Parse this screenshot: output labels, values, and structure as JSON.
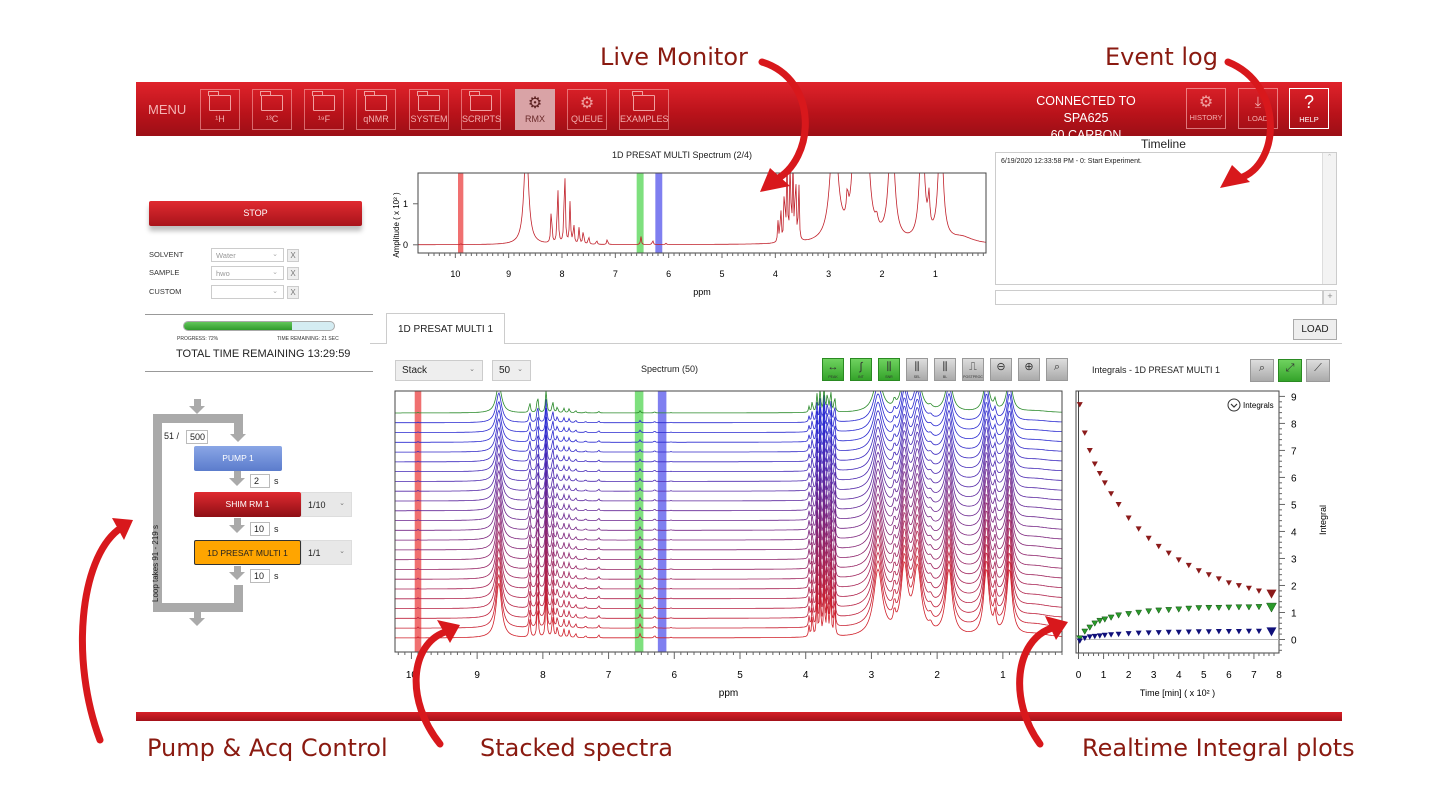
{
  "annotations": {
    "live_monitor": "Live Monitor",
    "event_log": "Event log",
    "pump_acq": "Pump & Acq Control",
    "stacked": "Stacked spectra",
    "realtime": "Realtime Integral plots",
    "arrow_color": "#d8181c"
  },
  "header": {
    "menu": "MENU",
    "buttons": [
      {
        "label": "¹H",
        "icon": "folder-icon"
      },
      {
        "label": "¹³C",
        "icon": "folder-icon"
      },
      {
        "label": "¹⁹F",
        "icon": "folder-icon"
      },
      {
        "label": "qNMR",
        "icon": "folder-icon"
      },
      {
        "label": "SYSTEM",
        "icon": "folder-icon"
      },
      {
        "label": "SCRIPTS",
        "icon": "folder-icon"
      },
      {
        "label": "RMX",
        "icon": "gears-icon",
        "selected": true
      },
      {
        "label": "QUEUE",
        "icon": "gears-icon"
      },
      {
        "label": "EXAMPLES",
        "icon": "folder-icon"
      }
    ],
    "connection_line1": "CONNECTED TO SPA625",
    "connection_line2": "60 CARBON",
    "history": "HISTORY",
    "load": "LOAD",
    "help": "HELP",
    "help_glyph": "?",
    "brand_color": "#c8161e"
  },
  "left": {
    "stop": "STOP",
    "fields": [
      {
        "label": "SOLVENT",
        "value": "Water",
        "clear": "X"
      },
      {
        "label": "SAMPLE",
        "value": "hwo",
        "clear": "X"
      },
      {
        "label": "CUSTOM",
        "value": "",
        "clear": "X"
      }
    ],
    "progress_pct": 72,
    "progress_text": "PROGRESS: 72%",
    "time_remaining": "TIME REMAINING: 21 SEC",
    "total_remaining": "TOTAL TIME REMAINING 13:29:59"
  },
  "flow": {
    "loop_count": "51 /",
    "loop_total": "500",
    "loop_note": "Loop takes 91 - 219 s",
    "steps": [
      {
        "label": "PUMP 1",
        "color": "#6f8fd6"
      },
      {
        "label": "SHIM RM 1",
        "color": "#b8141c",
        "option": "1/10"
      },
      {
        "label": "1D PRESAT MULTI 1",
        "color": "#ffa500",
        "option": "1/1"
      }
    ],
    "delays": [
      "2",
      "10",
      "10"
    ],
    "unit": "s"
  },
  "live_monitor": {
    "title": "1D PRESAT MULTI Spectrum (2/4)",
    "ylabel": "Amplitude ( x 10² )",
    "xlabel": "ppm",
    "xticks": [
      10,
      9,
      8,
      7,
      6,
      5,
      4,
      3,
      2,
      1
    ],
    "yticks": [
      0,
      1
    ],
    "xlim": [
      10.7,
      0.05
    ],
    "ylim": [
      -0.2,
      1.75
    ],
    "regions": [
      {
        "ppm": [
          9.95,
          9.85
        ],
        "color": "#f07070"
      },
      {
        "ppm": [
          6.6,
          6.47
        ],
        "color": "#7ee07e"
      },
      {
        "ppm": [
          6.25,
          6.12
        ],
        "color": "#7f7ff0"
      }
    ],
    "peaks": [
      [
        9.9,
        0.05,
        0.005
      ],
      [
        8.67,
        2.5,
        0.05
      ],
      [
        8.2,
        0.9,
        0.012
      ],
      [
        8.08,
        1.5,
        0.012
      ],
      [
        7.95,
        2.0,
        0.012
      ],
      [
        7.85,
        1.0,
        0.012
      ],
      [
        7.78,
        0.5,
        0.012
      ],
      [
        7.68,
        0.4,
        0.012
      ],
      [
        7.6,
        0.35,
        0.012
      ],
      [
        7.5,
        0.2,
        0.012
      ],
      [
        7.35,
        0.1,
        0.012
      ],
      [
        7.15,
        0.15,
        0.01
      ],
      [
        6.52,
        0.2,
        0.01
      ],
      [
        6.3,
        0.12,
        0.01
      ],
      [
        6.05,
        0.03,
        0.01
      ],
      [
        3.95,
        0.5,
        0.01
      ],
      [
        3.9,
        1.0,
        0.01
      ],
      [
        3.83,
        1.6,
        0.01
      ],
      [
        3.78,
        2.0,
        0.01
      ],
      [
        3.72,
        2.2,
        0.01
      ],
      [
        3.67,
        1.8,
        0.01
      ],
      [
        3.62,
        2.0,
        0.01
      ],
      [
        3.56,
        1.5,
        0.01
      ],
      [
        2.9,
        3.0,
        0.08
      ],
      [
        2.65,
        0.6,
        0.02
      ],
      [
        2.5,
        3.0,
        0.06
      ],
      [
        2.3,
        3.0,
        0.07
      ],
      [
        2.1,
        0.25,
        0.03
      ],
      [
        1.82,
        3.0,
        0.06
      ],
      [
        1.25,
        3.0,
        0.05
      ],
      [
        1.12,
        0.8,
        0.02
      ],
      [
        0.9,
        3.0,
        0.05
      ],
      [
        0.5,
        0.15,
        0.25
      ]
    ]
  },
  "timeline": {
    "title": "Timeline",
    "entries": [
      "6/19/2020 12:33:58 PM - 0: Start Experiment."
    ],
    "input": "",
    "add": "+"
  },
  "main": {
    "tab": "1D PRESAT MULTI 1",
    "load": "LOAD",
    "view_mode": "Stack",
    "count": "50",
    "spectrum_title": "Spectrum (50)",
    "tools": [
      {
        "icon": "peak-icon",
        "glyph": "↔",
        "label": "PEAK",
        "active": true
      },
      {
        "icon": "integral-icon",
        "glyph": "∫",
        "label": "INT",
        "active": true
      },
      {
        "icon": "snr-icon",
        "glyph": "⫼",
        "label": "SNR",
        "active": true
      },
      {
        "icon": "select-icon",
        "glyph": "⫼",
        "label": "SEL",
        "active": false
      },
      {
        "icon": "baseline-icon",
        "glyph": "⫼",
        "label": "BL",
        "active": false
      },
      {
        "icon": "postproc-icon",
        "glyph": "⎍",
        "label": "POSTPROC",
        "active": false
      },
      {
        "icon": "zoom-out-icon",
        "glyph": "⊖",
        "label": "",
        "active": false
      },
      {
        "icon": "zoom-in-icon",
        "glyph": "⊕",
        "label": "",
        "active": false
      },
      {
        "icon": "zoom-fit-icon",
        "glyph": "⌕",
        "label": "",
        "active": false
      }
    ],
    "xlabel": "ppm",
    "xticks": [
      10,
      9,
      8,
      7,
      6,
      5,
      4,
      3,
      2,
      1
    ],
    "xlim": [
      10.25,
      0.1
    ],
    "stack_lines": 24,
    "colors": {
      "oldest": "#d0202a",
      "middle": "#2a2ad0",
      "latest": "#2a8a2a"
    }
  },
  "integrals": {
    "title": "Integrals - 1D PRESAT MULTI 1",
    "legend": "Integrals",
    "tools": [
      "zoom-fit-icon",
      "expand-icon",
      "line-chart-icon"
    ],
    "chart_data": {
      "type": "scatter",
      "xlabel": "Time [min] ( x 10² )",
      "ylabel": "Integral",
      "xlim": [
        -0.1,
        8
      ],
      "ylim": [
        -0.5,
        9.2
      ],
      "xticks": [
        0,
        1,
        2,
        3,
        4,
        5,
        6,
        7,
        8
      ],
      "yticks": [
        0,
        1,
        2,
        3,
        4,
        5,
        6,
        7,
        8,
        9
      ],
      "x": [
        0.05,
        0.25,
        0.45,
        0.65,
        0.85,
        1.05,
        1.3,
        1.6,
        2.0,
        2.4,
        2.8,
        3.2,
        3.6,
        4.0,
        4.4,
        4.8,
        5.2,
        5.6,
        6.0,
        6.4,
        6.8,
        7.2,
        7.7
      ],
      "series": [
        {
          "color": "#8b1a1a",
          "values": [
            8.7,
            7.65,
            7.0,
            6.5,
            6.15,
            5.8,
            5.4,
            5.0,
            4.5,
            4.1,
            3.75,
            3.45,
            3.2,
            2.95,
            2.75,
            2.55,
            2.4,
            2.25,
            2.1,
            2.0,
            1.9,
            1.8,
            1.7
          ]
        },
        {
          "color": "#2a9a2a",
          "values": [
            0.05,
            0.3,
            0.45,
            0.6,
            0.7,
            0.75,
            0.82,
            0.9,
            0.95,
            1.0,
            1.05,
            1.08,
            1.1,
            1.12,
            1.15,
            1.17,
            1.18,
            1.18,
            1.19,
            1.2,
            1.2,
            1.21,
            1.2
          ]
        },
        {
          "color": "#10107a",
          "values": [
            -0.05,
            0.05,
            0.1,
            0.12,
            0.14,
            0.16,
            0.18,
            0.2,
            0.22,
            0.24,
            0.25,
            0.26,
            0.27,
            0.27,
            0.28,
            0.29,
            0.29,
            0.3,
            0.3,
            0.3,
            0.31,
            0.31,
            0.3
          ]
        }
      ]
    }
  }
}
